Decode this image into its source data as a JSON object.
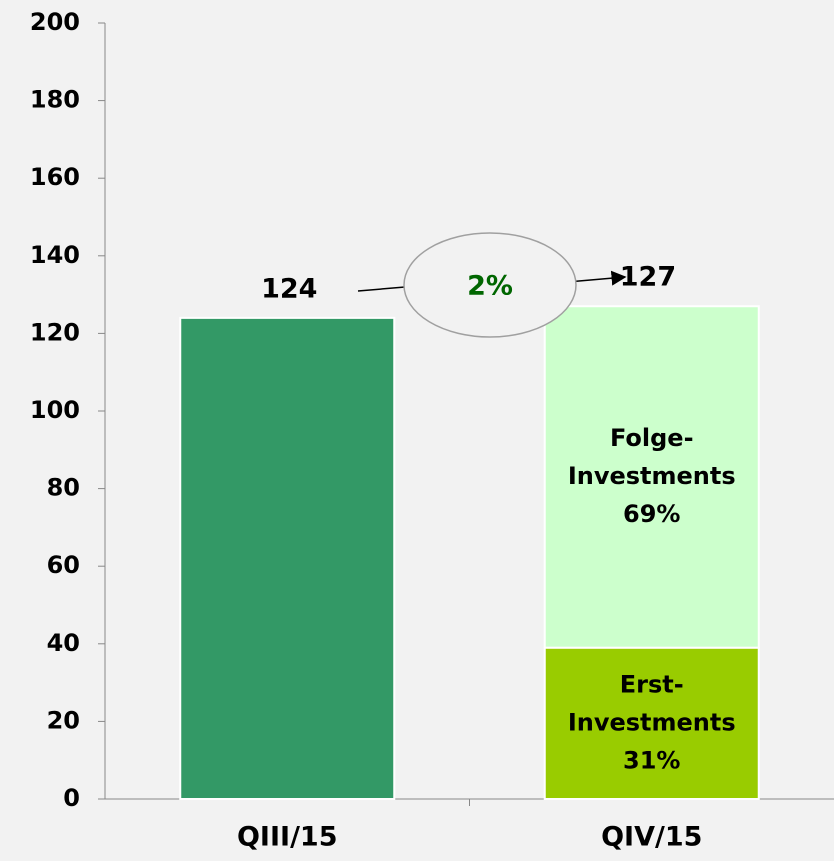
{
  "chart_data": {
    "type": "stacked_bar",
    "categories": [
      "QIII/15",
      "QIV/15"
    ],
    "series": [
      {
        "color": "#339966",
        "values": [
          124,
          null
        ]
      },
      {
        "name": "Erst-Investments",
        "color": "#99cc00",
        "values": [
          null,
          39
        ],
        "share_labels": [
          null,
          "31%"
        ]
      },
      {
        "name": "Folge-Investments",
        "color": "#ccffcc",
        "values": [
          null,
          88
        ],
        "share_labels": [
          null,
          "69%"
        ]
      }
    ],
    "totals": [
      124,
      127
    ],
    "growth_label": "2%",
    "ylim": [
      0,
      200
    ],
    "yticks": [
      0,
      20,
      40,
      60,
      80,
      100,
      120,
      140,
      160,
      180,
      200
    ]
  }
}
